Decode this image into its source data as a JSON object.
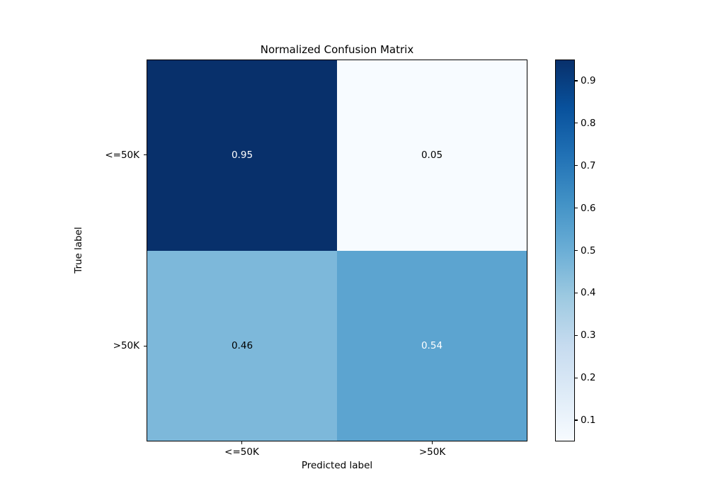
{
  "figure": {
    "background": "#ffffff"
  },
  "chart_data": {
    "type": "heatmap",
    "title": "Normalized Confusion Matrix",
    "xlabel": "Predicted label",
    "ylabel": "True label",
    "x_categories": [
      "<=50K",
      ">50K"
    ],
    "y_categories": [
      "<=50K",
      ">50K"
    ],
    "rows": [
      [
        0.95,
        0.05
      ],
      [
        0.46,
        0.54
      ]
    ],
    "cell_labels": [
      [
        "0.95",
        "0.05"
      ],
      [
        "0.46",
        "0.54"
      ]
    ],
    "cell_colors": [
      [
        "#08306b",
        "#f7fbff"
      ],
      [
        "#7db8da",
        "#5ca4d0"
      ]
    ],
    "cell_text_colors": [
      [
        "#ffffff",
        "#000000"
      ],
      [
        "#000000",
        "#ffffff"
      ]
    ],
    "colormap": "Blues",
    "vmin": 0.05,
    "vmax": 0.95,
    "legend_position": "right-colorbar",
    "grid": false,
    "colorbar": {
      "tick_labels": [
        "0.9",
        "0.8",
        "0.7",
        "0.6",
        "0.5",
        "0.4",
        "0.3",
        "0.2",
        "0.1"
      ],
      "tick_values": [
        0.9,
        0.8,
        0.7,
        0.6,
        0.5,
        0.4,
        0.3,
        0.2,
        0.1
      ],
      "gradient_stops_top_to_bottom": [
        "#08306b",
        "#08519c",
        "#2171b5",
        "#4292c6",
        "#6baed6",
        "#9ecae1",
        "#c6dbef",
        "#deebf7",
        "#f7fbff"
      ]
    }
  }
}
